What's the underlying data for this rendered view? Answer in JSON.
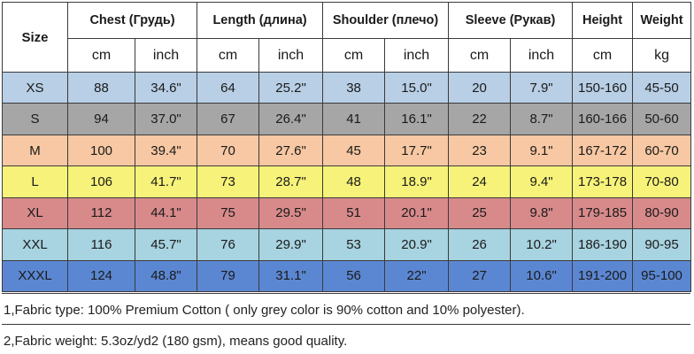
{
  "header": {
    "size_label": "Size",
    "groups": [
      {
        "label": "Chest  (Грудь)",
        "span": 2
      },
      {
        "label": "Length (длина)",
        "span": 2
      },
      {
        "label": "Shoulder (плечо)",
        "span": 2
      },
      {
        "label": "Sleeve (Рукав)",
        "span": 2
      },
      {
        "label": "Height",
        "span": 1
      },
      {
        "label": "Weight",
        "span": 1
      }
    ],
    "units": [
      "cm",
      "inch",
      "cm",
      "inch",
      "cm",
      "inch",
      "cm",
      "inch",
      "cm",
      "kg"
    ]
  },
  "rows": [
    {
      "size": "XS",
      "color": "#b8cfe6",
      "values": [
        "88",
        "34.6\"",
        "64",
        "25.2\"",
        "38",
        "15.0\"",
        "20",
        "7.9\"",
        "150-160",
        "45-50"
      ]
    },
    {
      "size": "S",
      "color": "#a6a6a6",
      "values": [
        "94",
        "37.0\"",
        "67",
        "26.4\"",
        "41",
        "16.1\"",
        "22",
        "8.7\"",
        "160-166",
        "50-60"
      ]
    },
    {
      "size": "M",
      "color": "#f7c8a3",
      "values": [
        "100",
        "39.4\"",
        "70",
        "27.6\"",
        "45",
        "17.7\"",
        "23",
        "9.1\"",
        "167-172",
        "60-70"
      ]
    },
    {
      "size": "L",
      "color": "#f7f37a",
      "values": [
        "106",
        "41.7\"",
        "73",
        "28.7\"",
        "48",
        "18.9\"",
        "24",
        "9.4\"",
        "173-178",
        "70-80"
      ]
    },
    {
      "size": "XL",
      "color": "#d88a8a",
      "values": [
        "112",
        "44.1\"",
        "75",
        "29.5\"",
        "51",
        "20.1\"",
        "25",
        "9.8\"",
        "179-185",
        "80-90"
      ]
    },
    {
      "size": "XXL",
      "color": "#a8d3e0",
      "values": [
        "116",
        "45.7\"",
        "76",
        "29.9\"",
        "53",
        "20.9\"",
        "26",
        "10.2\"",
        "186-190",
        "90-95"
      ]
    },
    {
      "size": "XXXL",
      "color": "#5b87d2",
      "values": [
        "124",
        "48.8\"",
        "79",
        "31.1\"",
        "56",
        "22\"",
        "27",
        "10.6\"",
        "191-200",
        "95-100"
      ]
    }
  ],
  "notes": [
    "1,Fabric type: 100% Premium Cotton ( only grey color is 90% cotton and 10% polyester).",
    "2,Fabric weight: 5.3oz/yd2 (180 gsm), means good quality."
  ]
}
